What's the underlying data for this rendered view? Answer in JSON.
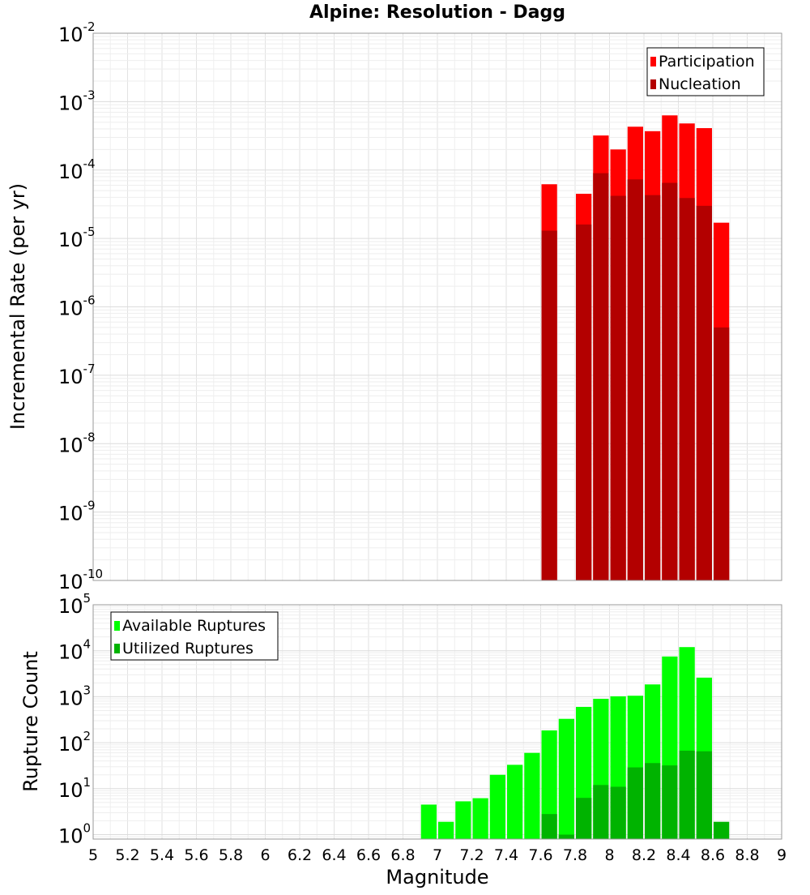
{
  "chart_data": [
    {
      "type": "bar",
      "title": "Alpine: Resolution - Dagg",
      "xlabel": "",
      "ylabel": "Incremental Rate (per yr)",
      "y_scale": "log",
      "ylim": [
        1e-10,
        0.01
      ],
      "xlim": [
        5,
        9
      ],
      "bar_width": 0.1,
      "grid": true,
      "legend_position": "top-right",
      "overlay": true,
      "y_tick_exponents": [
        -10,
        -9,
        -8,
        -7,
        -6,
        -5,
        -4,
        -3,
        -2
      ],
      "x": [
        7.65,
        7.85,
        7.95,
        8.05,
        8.15,
        8.25,
        8.35,
        8.45,
        8.55,
        8.65
      ],
      "series": [
        {
          "name": "Participation",
          "color": "#ff0000",
          "values": [
            6.2e-05,
            4.5e-05,
            0.00032,
            0.0002,
            0.00043,
            0.00037,
            0.00063,
            0.00048,
            0.00041,
            1.7e-05
          ]
        },
        {
          "name": "Nucleation",
          "color": "#b30000",
          "values": [
            1.3e-05,
            1.6e-05,
            9e-05,
            4.2e-05,
            7.3e-05,
            4.3e-05,
            6.5e-05,
            3.9e-05,
            3e-05,
            5e-07
          ]
        }
      ]
    },
    {
      "type": "bar",
      "title": "",
      "xlabel": "Magnitude",
      "ylabel": "Rupture Count",
      "y_scale": "log",
      "ylim": [
        0.8,
        100000.0
      ],
      "xlim": [
        5,
        9
      ],
      "bar_width": 0.1,
      "grid": true,
      "legend_position": "top-left",
      "overlay": true,
      "y_tick_exponents": [
        0,
        1,
        2,
        3,
        4,
        5
      ],
      "x_ticks": [
        "5",
        "5.2",
        "5.4",
        "5.6",
        "5.8",
        "6",
        "6.2",
        "6.4",
        "6.6",
        "6.8",
        "7",
        "7.2",
        "7.4",
        "7.6",
        "7.8",
        "8",
        "8.2",
        "8.4",
        "8.6",
        "8.8",
        "9"
      ],
      "x": [
        6.95,
        7.05,
        7.15,
        7.25,
        7.35,
        7.45,
        7.55,
        7.65,
        7.75,
        7.85,
        7.95,
        8.05,
        8.15,
        8.25,
        8.35,
        8.45,
        8.55,
        8.65
      ],
      "series": [
        {
          "name": "Available Ruptures",
          "color": "#00ff00",
          "values": [
            4.5,
            1.9,
            5.3,
            6.2,
            20,
            33,
            60,
            185,
            330,
            600,
            900,
            1020,
            1050,
            1850,
            7500,
            12000,
            2600,
            null
          ]
        },
        {
          "name": "Utilized Ruptures",
          "color": "#00b300",
          "values": [
            null,
            null,
            null,
            null,
            null,
            null,
            null,
            2.8,
            1.0,
            6.3,
            12,
            11,
            29,
            36,
            32,
            67,
            65,
            1.9
          ]
        }
      ]
    }
  ]
}
